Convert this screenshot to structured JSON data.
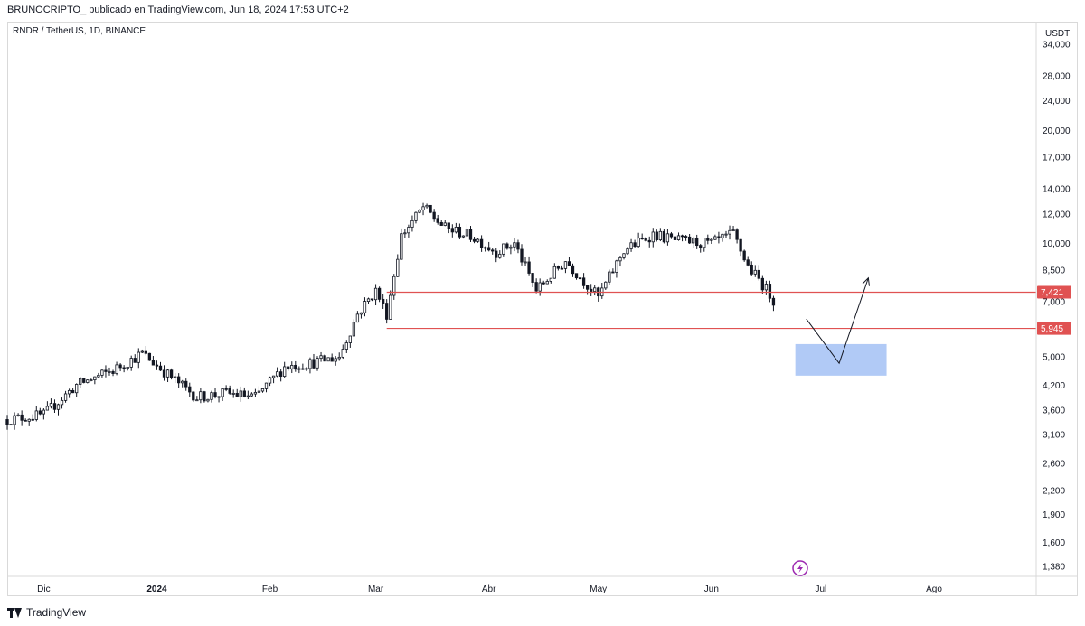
{
  "header": {
    "text": "BRUNOCRIPTO_  publicado en TradingView.com, Jun 18, 2024 17:53 UTC+2"
  },
  "symbol": {
    "text": "RNDR / TetherUS, 1D, BINANCE"
  },
  "footer": {
    "brand": "TradingView"
  },
  "colors": {
    "up": "#ffffff",
    "down": "#131722",
    "level": "#e05252",
    "zone": "#a8c4f5"
  },
  "chart_data": {
    "type": "candlestick",
    "currency": "USDT",
    "y_scale": "log",
    "ylim": [
      1.3,
      39.0
    ],
    "y_ticks": [
      {
        "value": 34.0,
        "label": "34,000"
      },
      {
        "value": 28.0,
        "label": "28,000"
      },
      {
        "value": 24.0,
        "label": "24,000"
      },
      {
        "value": 20.0,
        "label": "20,000"
      },
      {
        "value": 17.0,
        "label": "17,000"
      },
      {
        "value": 14.0,
        "label": "14,000"
      },
      {
        "value": 12.0,
        "label": "12,000"
      },
      {
        "value": 10.0,
        "label": "10,000"
      },
      {
        "value": 8.5,
        "label": "8,500"
      },
      {
        "value": 7.0,
        "label": "7,000"
      },
      {
        "value": 5.0,
        "label": "5,000"
      },
      {
        "value": 4.2,
        "label": "4,200"
      },
      {
        "value": 3.6,
        "label": "3,600"
      },
      {
        "value": 3.1,
        "label": "3,100"
      },
      {
        "value": 2.6,
        "label": "2,600"
      },
      {
        "value": 2.2,
        "label": "2,200"
      },
      {
        "value": 1.9,
        "label": "1,900"
      },
      {
        "value": 1.6,
        "label": "1,600"
      },
      {
        "value": 1.38,
        "label": "1,380"
      }
    ],
    "x_ticks": [
      {
        "date": "2023-12-01",
        "label": "Dic",
        "bold": false
      },
      {
        "date": "2024-01-01",
        "label": "2024",
        "bold": true
      },
      {
        "date": "2024-02-01",
        "label": "Feb",
        "bold": false
      },
      {
        "date": "2024-03-01",
        "label": "Mar",
        "bold": false
      },
      {
        "date": "2024-04-01",
        "label": "Abr",
        "bold": false
      },
      {
        "date": "2024-05-01",
        "label": "May",
        "bold": false
      },
      {
        "date": "2024-06-01",
        "label": "Jun",
        "bold": false
      },
      {
        "date": "2024-07-01",
        "label": "Jul",
        "bold": false
      },
      {
        "date": "2024-08-01",
        "label": "Ago",
        "bold": false
      }
    ],
    "xlim": [
      "2023-11-21",
      "2024-08-29"
    ],
    "price_path": [
      {
        "date": "2023-11-21",
        "close": 3.4
      },
      {
        "date": "2023-12-01",
        "close": 3.5
      },
      {
        "date": "2023-12-10",
        "close": 4.2
      },
      {
        "date": "2023-12-20",
        "close": 4.6
      },
      {
        "date": "2023-12-28",
        "close": 5.1
      },
      {
        "date": "2024-01-05",
        "close": 4.4
      },
      {
        "date": "2024-01-12",
        "close": 3.9
      },
      {
        "date": "2024-01-20",
        "close": 4.0
      },
      {
        "date": "2024-01-28",
        "close": 3.9
      },
      {
        "date": "2024-02-05",
        "close": 4.7
      },
      {
        "date": "2024-02-12",
        "close": 4.8
      },
      {
        "date": "2024-02-20",
        "close": 5.0
      },
      {
        "date": "2024-02-25",
        "close": 6.5
      },
      {
        "date": "2024-03-01",
        "close": 7.5
      },
      {
        "date": "2024-03-04",
        "close": 6.5
      },
      {
        "date": "2024-03-08",
        "close": 10.5
      },
      {
        "date": "2024-03-14",
        "close": 12.5
      },
      {
        "date": "2024-03-20",
        "close": 11.0
      },
      {
        "date": "2024-03-27",
        "close": 10.5
      },
      {
        "date": "2024-04-03",
        "close": 9.5
      },
      {
        "date": "2024-04-08",
        "close": 10.0
      },
      {
        "date": "2024-04-14",
        "close": 7.5
      },
      {
        "date": "2024-04-22",
        "close": 9.0
      },
      {
        "date": "2024-05-01",
        "close": 7.2
      },
      {
        "date": "2024-05-08",
        "close": 9.6
      },
      {
        "date": "2024-05-16",
        "close": 10.6
      },
      {
        "date": "2024-05-22",
        "close": 10.2
      },
      {
        "date": "2024-06-01",
        "close": 10.0
      },
      {
        "date": "2024-06-07",
        "close": 10.6
      },
      {
        "date": "2024-06-11",
        "close": 8.7
      },
      {
        "date": "2024-06-15",
        "close": 7.8
      },
      {
        "date": "2024-06-18",
        "close": 7.1
      }
    ],
    "levels": [
      {
        "value": 7.421,
        "label": "7,421"
      },
      {
        "value": 5.945,
        "label": "5,945"
      }
    ],
    "projection": [
      {
        "date": "2024-06-27",
        "value": 6.3
      },
      {
        "date": "2024-07-06",
        "value": 4.8
      },
      {
        "date": "2024-07-14",
        "value": 8.1
      }
    ],
    "zone": {
      "date_start": "2024-06-24",
      "date_end": "2024-07-19",
      "low": 4.45,
      "high": 5.4
    }
  }
}
